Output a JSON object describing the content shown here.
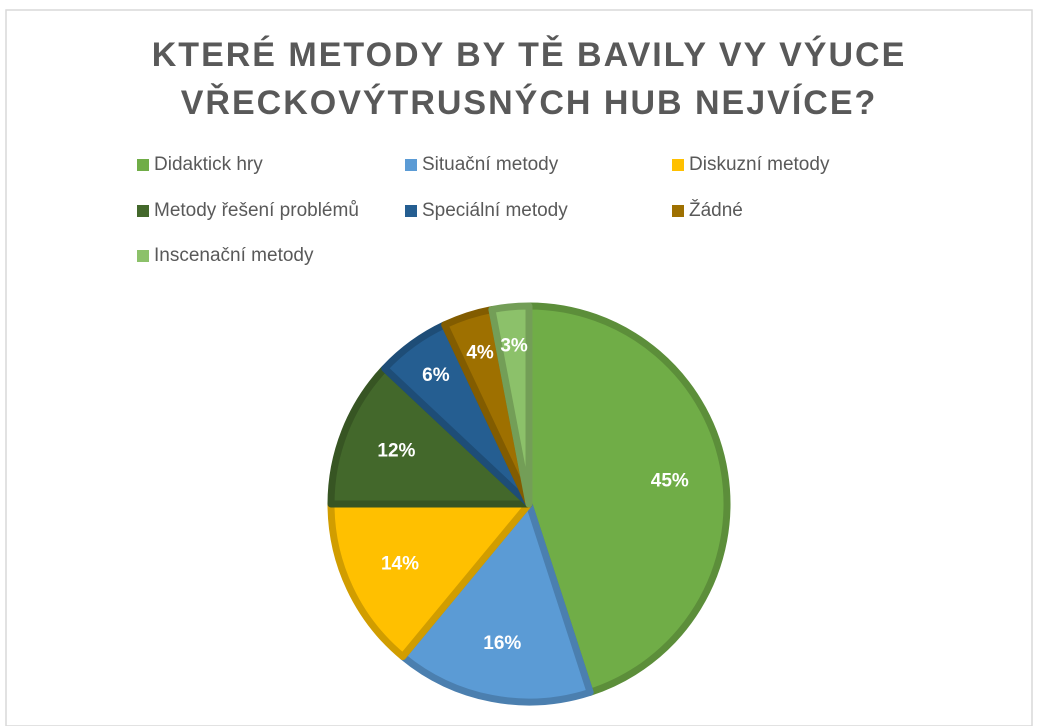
{
  "chart_data": {
    "type": "pie",
    "title": [
      "KTERÉ METODY BY TĚ BAVILY VY VÝUCE",
      "VŘECKOVÝTRUSNÝCH HUB NEJVÍCE?"
    ],
    "categories": [
      "Didaktick hry",
      "Situační metody",
      "Diskuzní metody",
      "Metody řešení problémů",
      "Speciální metody",
      "Žádné",
      "Inscenační metody"
    ],
    "values": [
      45,
      16,
      14,
      12,
      6,
      4,
      3
    ],
    "value_labels": [
      "45%",
      "16%",
      "14%",
      "12%",
      "6%",
      "4%",
      "3%"
    ],
    "colors": [
      "#70ad47",
      "#5b9bd5",
      "#ffc000",
      "#43682b",
      "#255e91",
      "#9e7000",
      "#8cc16a"
    ],
    "legend": "top"
  }
}
